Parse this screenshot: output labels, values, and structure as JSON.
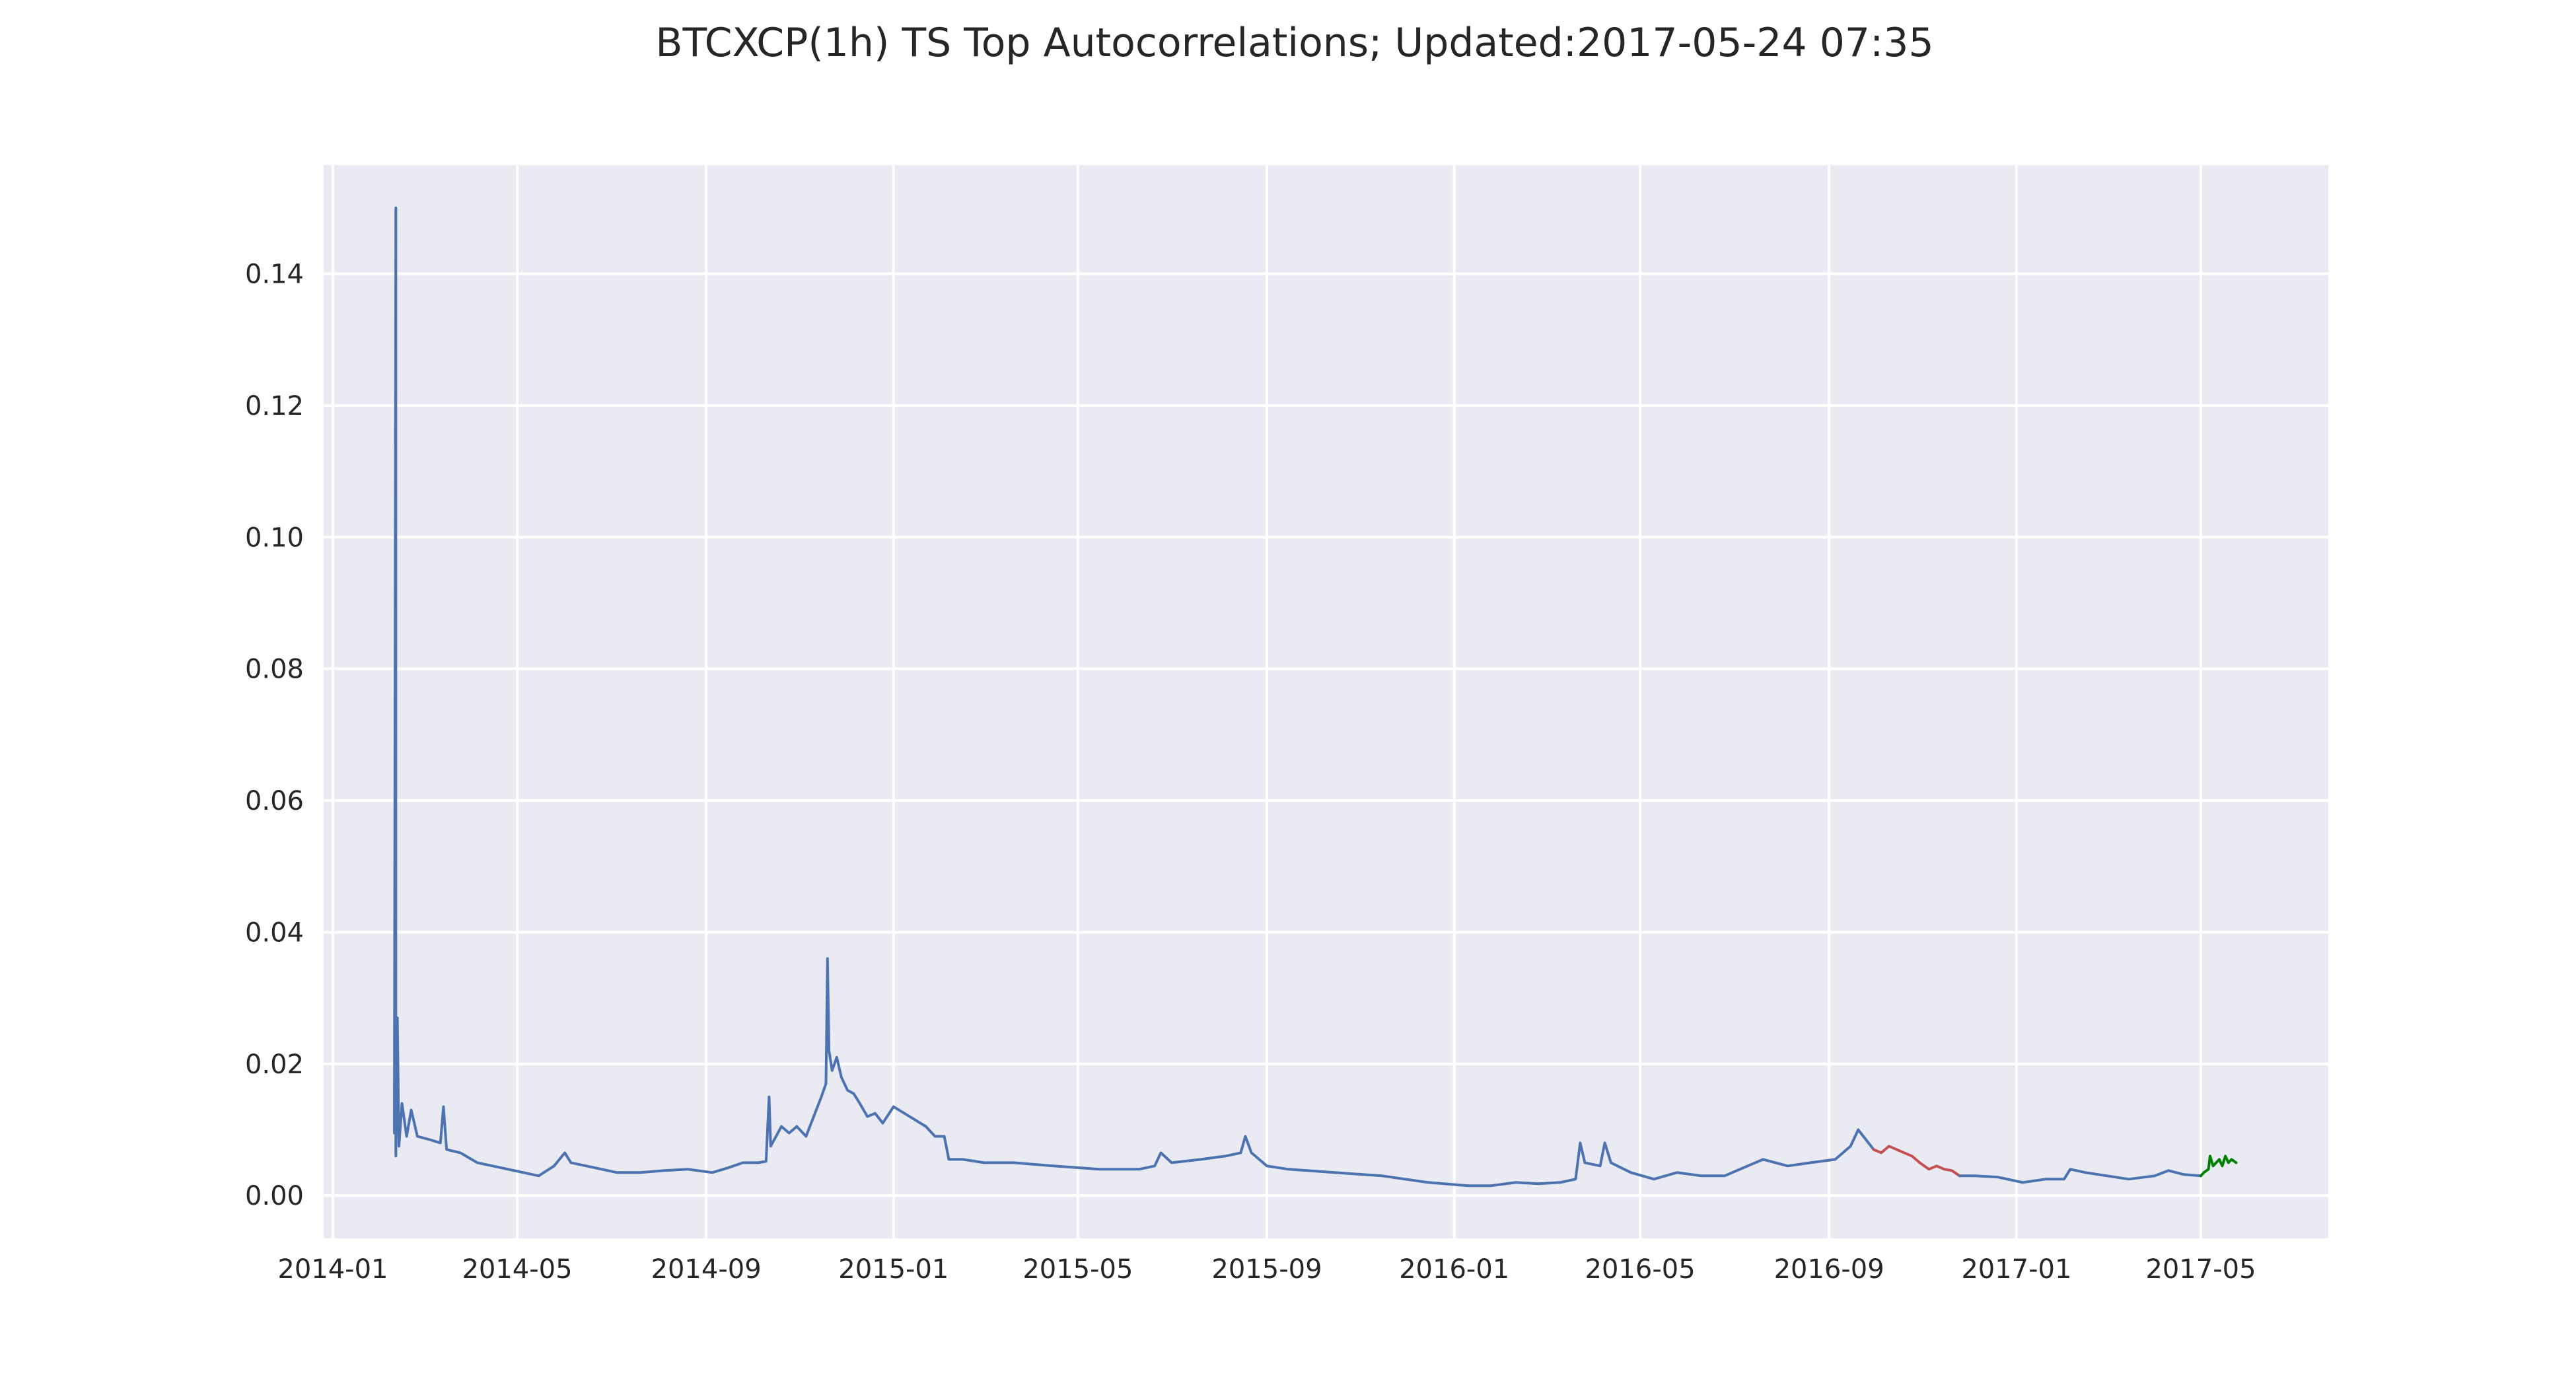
{
  "chart_data": {
    "type": "line",
    "title": "BTCXCP(1h) TS Top Autocorrelations;  Updated:2017-05-24 07:35",
    "xlabel": "",
    "ylabel": "",
    "x_type": "date",
    "xlim": [
      "2013-12-26",
      "2017-07-23"
    ],
    "ylim": [
      -0.0065,
      0.1565
    ],
    "grid": true,
    "background": "#eaeaf2",
    "x_ticks": [
      "2014-01",
      "2014-05",
      "2014-09",
      "2015-01",
      "2015-05",
      "2015-09",
      "2016-01",
      "2016-05",
      "2016-09",
      "2017-01",
      "2017-05"
    ],
    "y_ticks": [
      0.0,
      0.02,
      0.04,
      0.06,
      0.08,
      0.1,
      0.12,
      0.14
    ],
    "y_tick_labels": [
      "0.00",
      "0.02",
      "0.04",
      "0.06",
      "0.08",
      "0.10",
      "0.12",
      "0.14"
    ],
    "series": [
      {
        "color": "#4c72b0",
        "points": [
          [
            "2014-02-10",
            0.0095
          ],
          [
            "2014-02-11",
            0.15
          ],
          [
            "2014-02-11",
            0.006
          ],
          [
            "2014-02-12",
            0.027
          ],
          [
            "2014-02-13",
            0.0075
          ],
          [
            "2014-02-15",
            0.014
          ],
          [
            "2014-02-18",
            0.009
          ],
          [
            "2014-02-21",
            0.013
          ],
          [
            "2014-02-25",
            0.009
          ],
          [
            "2014-03-05",
            0.0085
          ],
          [
            "2014-03-12",
            0.008
          ],
          [
            "2014-03-14",
            0.0135
          ],
          [
            "2014-03-16",
            0.007
          ],
          [
            "2014-03-25",
            0.0065
          ],
          [
            "2014-04-05",
            0.005
          ],
          [
            "2014-04-15",
            0.0045
          ],
          [
            "2014-04-25",
            0.004
          ],
          [
            "2014-05-05",
            0.0035
          ],
          [
            "2014-05-15",
            0.003
          ],
          [
            "2014-05-25",
            0.0045
          ],
          [
            "2014-06-01",
            0.0065
          ],
          [
            "2014-06-05",
            0.005
          ],
          [
            "2014-06-15",
            0.0045
          ],
          [
            "2014-06-25",
            0.004
          ],
          [
            "2014-07-05",
            0.0035
          ],
          [
            "2014-07-20",
            0.0035
          ],
          [
            "2014-08-05",
            0.0038
          ],
          [
            "2014-08-20",
            0.004
          ],
          [
            "2014-09-05",
            0.0035
          ],
          [
            "2014-09-15",
            0.0042
          ],
          [
            "2014-09-25",
            0.005
          ],
          [
            "2014-10-05",
            0.005
          ],
          [
            "2014-10-10",
            0.0052
          ],
          [
            "2014-10-12",
            0.015
          ],
          [
            "2014-10-13",
            0.0075
          ],
          [
            "2014-10-20",
            0.0105
          ],
          [
            "2014-10-25",
            0.0095
          ],
          [
            "2014-10-30",
            0.0105
          ],
          [
            "2014-11-05",
            0.009
          ],
          [
            "2014-11-10",
            0.012
          ],
          [
            "2014-11-15",
            0.015
          ],
          [
            "2014-11-18",
            0.017
          ],
          [
            "2014-11-19",
            0.036
          ],
          [
            "2014-11-20",
            0.022
          ],
          [
            "2014-11-22",
            0.019
          ],
          [
            "2014-11-25",
            0.021
          ],
          [
            "2014-11-28",
            0.018
          ],
          [
            "2014-12-02",
            0.016
          ],
          [
            "2014-12-06",
            0.0155
          ],
          [
            "2014-12-10",
            0.014
          ],
          [
            "2014-12-15",
            0.012
          ],
          [
            "2014-12-20",
            0.0125
          ],
          [
            "2014-12-25",
            0.011
          ],
          [
            "2015-01-01",
            0.0135
          ],
          [
            "2015-01-08",
            0.0125
          ],
          [
            "2015-01-15",
            0.0115
          ],
          [
            "2015-01-22",
            0.0105
          ],
          [
            "2015-01-28",
            0.009
          ],
          [
            "2015-02-03",
            0.009
          ],
          [
            "2015-02-06",
            0.0055
          ],
          [
            "2015-02-15",
            0.0055
          ],
          [
            "2015-03-01",
            0.005
          ],
          [
            "2015-03-20",
            0.005
          ],
          [
            "2015-04-15",
            0.0045
          ],
          [
            "2015-05-15",
            0.004
          ],
          [
            "2015-06-10",
            0.004
          ],
          [
            "2015-06-20",
            0.0045
          ],
          [
            "2015-06-24",
            0.0065
          ],
          [
            "2015-07-01",
            0.005
          ],
          [
            "2015-07-20",
            0.0055
          ],
          [
            "2015-08-05",
            0.006
          ],
          [
            "2015-08-15",
            0.0065
          ],
          [
            "2015-08-18",
            0.009
          ],
          [
            "2015-08-22",
            0.0065
          ],
          [
            "2015-09-01",
            0.0045
          ],
          [
            "2015-09-15",
            0.004
          ],
          [
            "2015-10-15",
            0.0035
          ],
          [
            "2015-11-15",
            0.003
          ],
          [
            "2015-12-15",
            0.002
          ],
          [
            "2016-01-10",
            0.0015
          ],
          [
            "2016-01-25",
            0.0015
          ],
          [
            "2016-02-10",
            0.002
          ],
          [
            "2016-02-25",
            0.0018
          ],
          [
            "2016-03-10",
            0.002
          ],
          [
            "2016-03-20",
            0.0025
          ],
          [
            "2016-03-23",
            0.008
          ],
          [
            "2016-03-26",
            0.005
          ],
          [
            "2016-04-05",
            0.0045
          ],
          [
            "2016-04-08",
            0.008
          ],
          [
            "2016-04-12",
            0.005
          ],
          [
            "2016-04-25",
            0.0035
          ],
          [
            "2016-05-10",
            0.0025
          ],
          [
            "2016-05-25",
            0.0035
          ],
          [
            "2016-06-10",
            0.003
          ],
          [
            "2016-06-25",
            0.003
          ],
          [
            "2016-07-10",
            0.0045
          ],
          [
            "2016-07-20",
            0.0055
          ],
          [
            "2016-08-05",
            0.0045
          ],
          [
            "2016-08-20",
            0.005
          ],
          [
            "2016-09-05",
            0.0055
          ],
          [
            "2016-09-15",
            0.0075
          ],
          [
            "2016-09-20",
            0.01
          ],
          [
            "2016-09-25",
            0.0085
          ],
          [
            "2016-09-30",
            0.007
          ]
        ]
      },
      {
        "color": "#c44e52",
        "points": [
          [
            "2016-09-30",
            0.007
          ],
          [
            "2016-10-05",
            0.0065
          ],
          [
            "2016-10-10",
            0.0075
          ],
          [
            "2016-10-15",
            0.007
          ],
          [
            "2016-10-20",
            0.0065
          ],
          [
            "2016-10-25",
            0.006
          ],
          [
            "2016-10-30",
            0.005
          ],
          [
            "2016-11-05",
            0.004
          ],
          [
            "2016-11-10",
            0.0045
          ],
          [
            "2016-11-15",
            0.004
          ],
          [
            "2016-11-20",
            0.0038
          ],
          [
            "2016-11-25",
            0.003
          ]
        ]
      },
      {
        "color": "#4c72b0",
        "points": [
          [
            "2016-11-25",
            0.003
          ],
          [
            "2016-12-05",
            0.003
          ],
          [
            "2016-12-20",
            0.0028
          ],
          [
            "2017-01-05",
            0.002
          ],
          [
            "2017-01-20",
            0.0025
          ],
          [
            "2017-02-01",
            0.0025
          ],
          [
            "2017-02-05",
            0.004
          ],
          [
            "2017-02-15",
            0.0035
          ],
          [
            "2017-03-01",
            0.003
          ],
          [
            "2017-03-15",
            0.0025
          ],
          [
            "2017-04-01",
            0.003
          ],
          [
            "2017-04-10",
            0.0038
          ],
          [
            "2017-04-20",
            0.0032
          ],
          [
            "2017-05-01",
            0.003
          ]
        ]
      },
      {
        "color": "#008000",
        "points": [
          [
            "2017-05-01",
            0.003
          ],
          [
            "2017-05-03",
            0.0035
          ],
          [
            "2017-05-06",
            0.004
          ],
          [
            "2017-05-07",
            0.006
          ],
          [
            "2017-05-09",
            0.0045
          ],
          [
            "2017-05-11",
            0.005
          ],
          [
            "2017-05-13",
            0.0055
          ],
          [
            "2017-05-15",
            0.0045
          ],
          [
            "2017-05-17",
            0.006
          ],
          [
            "2017-05-19",
            0.005
          ],
          [
            "2017-05-21",
            0.0055
          ],
          [
            "2017-05-24",
            0.005
          ]
        ]
      }
    ]
  }
}
